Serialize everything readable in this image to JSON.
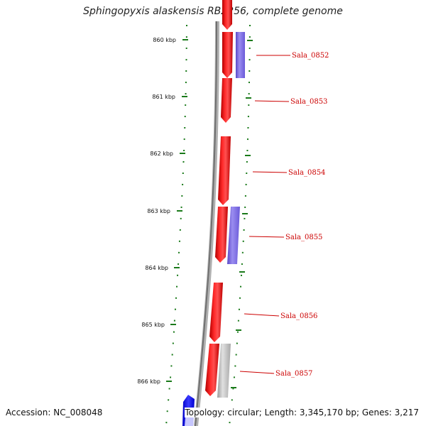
{
  "title": "Sphingopyxis alaskensis RB2256, complete genome",
  "footer": {
    "accession": "Accession: NC_008048",
    "summary": "Topology: circular; Length: 3,345,170 bp; Genes: 3,217"
  },
  "ticks": [
    {
      "label": "860 kbp"
    },
    {
      "label": "861 kbp"
    },
    {
      "label": "862 kbp"
    },
    {
      "label": "863 kbp"
    },
    {
      "label": "864 kbp"
    },
    {
      "label": "865 kbp"
    },
    {
      "label": "866 kbp"
    }
  ],
  "genes": [
    {
      "label": "Sala_0852"
    },
    {
      "label": "Sala_0853"
    },
    {
      "label": "Sala_0854"
    },
    {
      "label": "Sala_0855"
    },
    {
      "label": "Sala_0856"
    },
    {
      "label": "Sala_0857"
    }
  ],
  "colors": {
    "cds": "#ff0000",
    "gene_label": "#cc0000",
    "feature_blue": "#7b68ee",
    "feature_grey": "#c0c0c0",
    "tick": "#1a7a1a",
    "backbone": "#808080",
    "contig_blue": "#0000ff"
  }
}
